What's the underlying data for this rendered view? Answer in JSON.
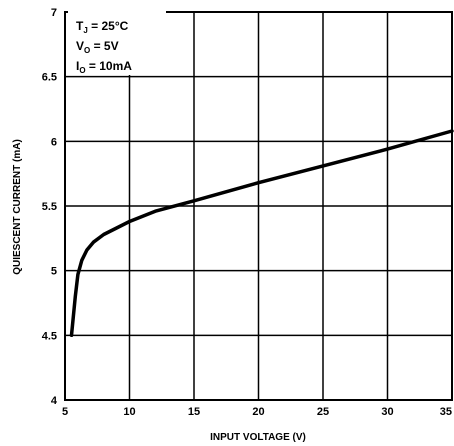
{
  "chart_data": {
    "type": "line",
    "title": "",
    "xlabel": "INPUT VOLTAGE (V)",
    "ylabel": "QUIESCENT CURRENT (mA)",
    "xlim": [
      5,
      35
    ],
    "ylim": [
      4,
      7
    ],
    "x_ticks": [
      "5",
      "10",
      "15",
      "20",
      "25",
      "30",
      "35"
    ],
    "y_ticks": [
      "4",
      "4.5",
      "5",
      "5.5",
      "6",
      "6.5",
      "7"
    ],
    "grid": true,
    "conditions": {
      "tj": {
        "main": "T",
        "sub": "J",
        "value": " = 25°C"
      },
      "vo": {
        "main": "V",
        "sub": "O",
        "value": " = 5V"
      },
      "io": {
        "main": "I",
        "sub": "O",
        "value": " = 10mA"
      }
    },
    "series": [
      {
        "x": [
          5.5,
          5.8,
          6.0,
          6.3,
          6.7,
          7.2,
          8.0,
          9.0,
          10.0,
          12.0,
          15.0,
          20.0,
          25.0,
          30.0,
          35.0
        ],
        "values": [
          4.5,
          4.8,
          4.97,
          5.08,
          5.16,
          5.22,
          5.28,
          5.33,
          5.38,
          5.46,
          5.54,
          5.68,
          5.81,
          5.94,
          6.08
        ]
      }
    ],
    "colors": {
      "line": "#000000",
      "grid": "#000000"
    }
  }
}
